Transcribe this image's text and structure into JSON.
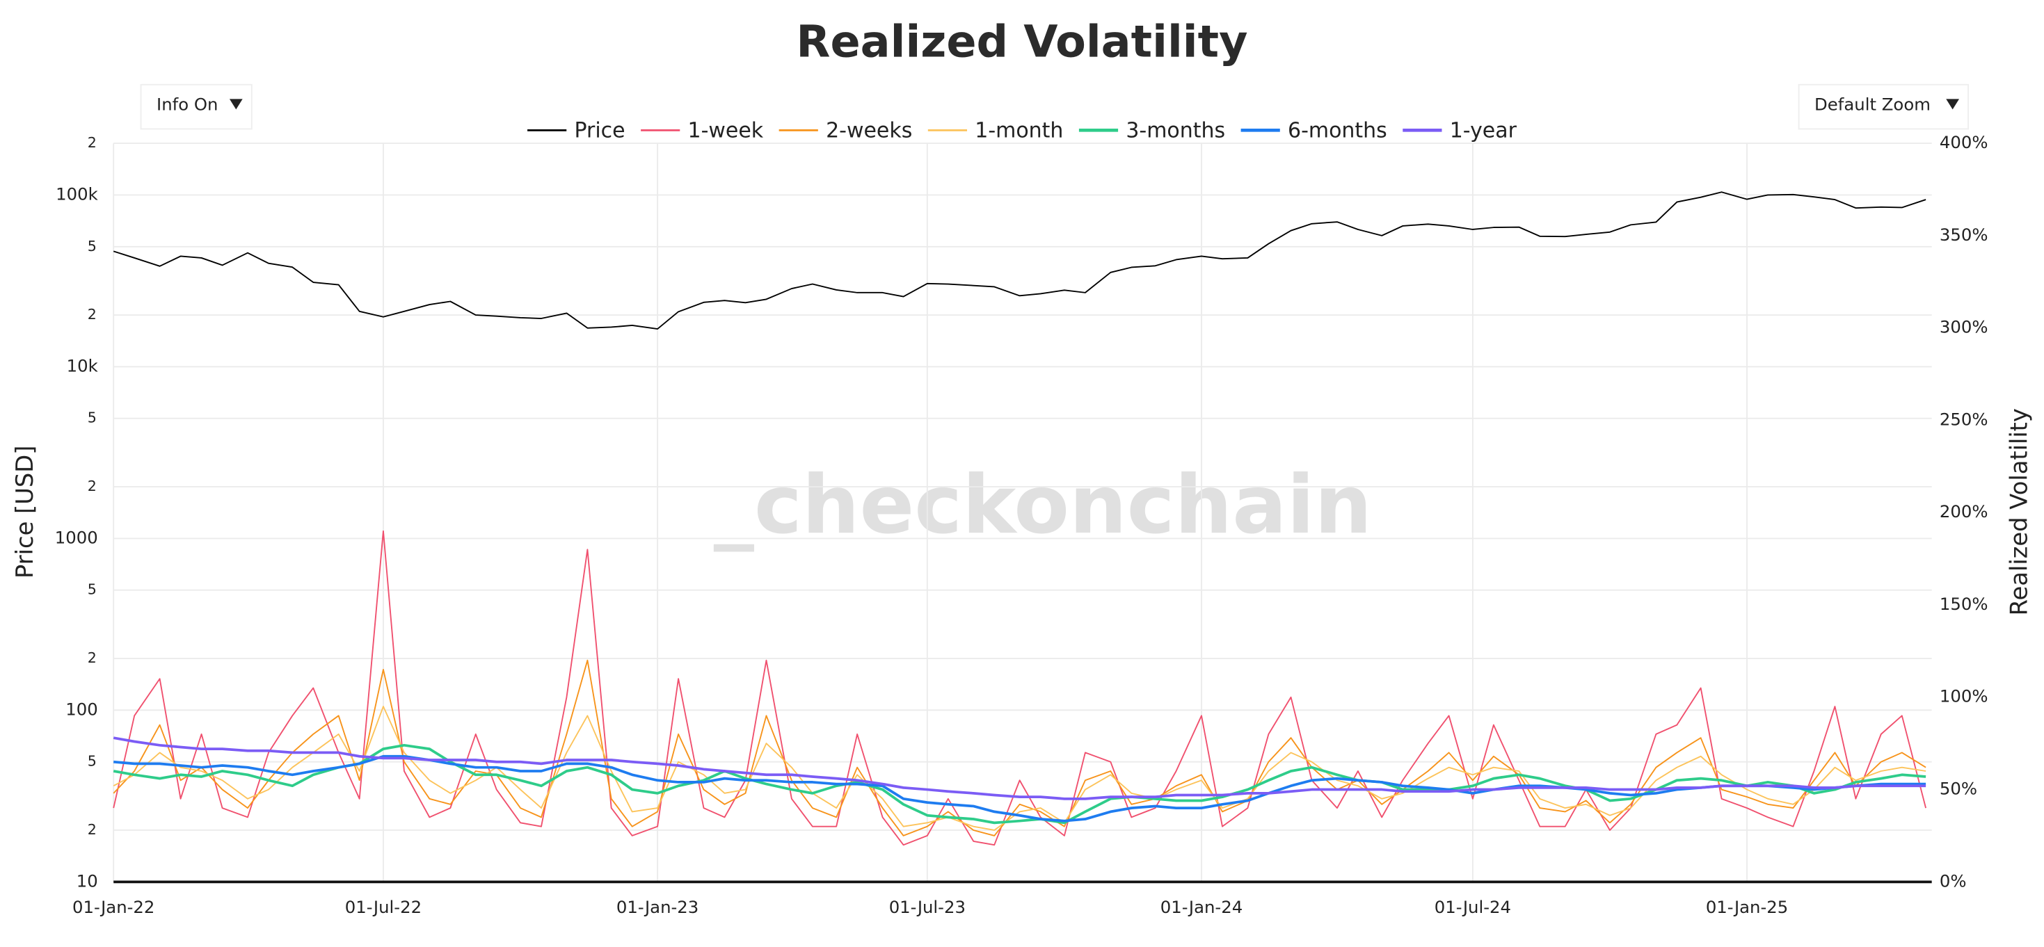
{
  "chart_data": {
    "type": "line",
    "title": "Realized Volatility",
    "ylabel": "Price [USD]",
    "y2label": "Realized Volatility",
    "watermark": "_checkonchain",
    "controls": {
      "info": "Info On",
      "zoom": "Default Zoom"
    },
    "log_y": true,
    "grid": true,
    "legend": "top",
    "xlim": [
      "2022-01-01",
      "2025-05-05"
    ],
    "xticks": [
      {
        "value": "2022-01-01",
        "label": "01-Jan-22"
      },
      {
        "value": "2022-07-01",
        "label": "01-Jul-22"
      },
      {
        "value": "2023-01-01",
        "label": "01-Jan-23"
      },
      {
        "value": "2023-07-01",
        "label": "01-Jul-23"
      },
      {
        "value": "2024-01-01",
        "label": "01-Jan-24"
      },
      {
        "value": "2024-07-01",
        "label": "01-Jul-24"
      },
      {
        "value": "2025-01-01",
        "label": "01-Jan-25"
      }
    ],
    "ylim": [
      10,
      200000
    ],
    "yticks": [
      10,
      {
        "value": 20,
        "label": "2"
      },
      {
        "value": 50,
        "label": "5"
      },
      100,
      {
        "value": 200,
        "label": "2"
      },
      {
        "value": 500,
        "label": "5"
      },
      1000,
      {
        "value": 2000,
        "label": "2"
      },
      {
        "value": 5000,
        "label": "5"
      },
      {
        "value": 10000,
        "label": "10k"
      },
      {
        "value": 20000,
        "label": "2"
      },
      {
        "value": 50000,
        "label": "5"
      },
      {
        "value": 100000,
        "label": "100k"
      },
      {
        "value": 200000,
        "label": "2"
      }
    ],
    "y2lim": [
      0,
      400
    ],
    "y2ticks": [
      {
        "value": 0,
        "label": "0%"
      },
      {
        "value": 50,
        "label": "50%"
      },
      {
        "value": 100,
        "label": "100%"
      },
      {
        "value": 150,
        "label": "150%"
      },
      {
        "value": 200,
        "label": "200%"
      },
      {
        "value": 250,
        "label": "250%"
      },
      {
        "value": 300,
        "label": "300%"
      },
      {
        "value": 350,
        "label": "350%"
      },
      {
        "value": 400,
        "label": "400%"
      }
    ],
    "x": [
      "2022-01-01",
      "2022-01-15",
      "2022-02-01",
      "2022-02-15",
      "2022-03-01",
      "2022-03-15",
      "2022-04-01",
      "2022-04-15",
      "2022-05-01",
      "2022-05-15",
      "2022-06-01",
      "2022-06-15",
      "2022-07-01",
      "2022-07-15",
      "2022-08-01",
      "2022-08-15",
      "2022-09-01",
      "2022-09-15",
      "2022-10-01",
      "2022-10-15",
      "2022-11-01",
      "2022-11-15",
      "2022-12-01",
      "2022-12-15",
      "2023-01-01",
      "2023-01-15",
      "2023-02-01",
      "2023-02-15",
      "2023-03-01",
      "2023-03-15",
      "2023-04-01",
      "2023-04-15",
      "2023-05-01",
      "2023-05-15",
      "2023-06-01",
      "2023-06-15",
      "2023-07-01",
      "2023-07-15",
      "2023-08-01",
      "2023-08-15",
      "2023-09-01",
      "2023-09-15",
      "2023-10-01",
      "2023-10-15",
      "2023-11-01",
      "2023-11-15",
      "2023-12-01",
      "2023-12-15",
      "2024-01-01",
      "2024-01-15",
      "2024-02-01",
      "2024-02-15",
      "2024-03-01",
      "2024-03-15",
      "2024-04-01",
      "2024-04-15",
      "2024-05-01",
      "2024-05-15",
      "2024-06-01",
      "2024-06-15",
      "2024-07-01",
      "2024-07-15",
      "2024-08-01",
      "2024-08-15",
      "2024-09-01",
      "2024-09-15",
      "2024-10-01",
      "2024-10-15",
      "2024-11-01",
      "2024-11-15",
      "2024-12-01",
      "2024-12-15",
      "2025-01-01",
      "2025-01-15",
      "2025-02-01",
      "2025-02-15",
      "2025-03-01",
      "2025-03-15",
      "2025-04-01",
      "2025-04-15",
      "2025-05-01"
    ],
    "series": [
      {
        "name": "Price",
        "color": "#000000",
        "width": 1,
        "axis": "y",
        "values": [
          47000,
          43000,
          38500,
          44000,
          43000,
          39000,
          46000,
          40000,
          38000,
          31000,
          30000,
          21000,
          19500,
          21000,
          23000,
          24000,
          20000,
          19700,
          19300,
          19100,
          20500,
          16800,
          17000,
          17400,
          16600,
          20900,
          23700,
          24300,
          23600,
          24700,
          28500,
          30300,
          28000,
          27000,
          27000,
          25600,
          30500,
          30300,
          29700,
          29200,
          25900,
          26600,
          27900,
          27000,
          35400,
          37900,
          38700,
          42000,
          44000,
          42500,
          43000,
          52000,
          62000,
          68000,
          69700,
          63000,
          58000,
          66000,
          67700,
          66000,
          63000,
          64700,
          65000,
          57500,
          57300,
          59000,
          60800,
          67000,
          69500,
          91000,
          97000,
          104000,
          94400,
          100000,
          100600,
          97500,
          94000,
          84000,
          85000,
          84500,
          94000
        ]
      },
      {
        "name": "1-week",
        "color": "#f0506e",
        "width": 1,
        "axis": "y2",
        "values": [
          40,
          90,
          110,
          45,
          80,
          40,
          35,
          70,
          90,
          105,
          70,
          45,
          190,
          60,
          35,
          40,
          80,
          50,
          32,
          30,
          100,
          180,
          40,
          25,
          30,
          110,
          40,
          35,
          55,
          120,
          45,
          30,
          30,
          80,
          35,
          20,
          25,
          45,
          22,
          20,
          55,
          35,
          25,
          70,
          65,
          35,
          40,
          60,
          90,
          30,
          40,
          80,
          100,
          55,
          40,
          60,
          35,
          55,
          75,
          90,
          45,
          85,
          55,
          30,
          30,
          50,
          28,
          40,
          80,
          85,
          105,
          45,
          40,
          35,
          30,
          60,
          95,
          45,
          80,
          90,
          40
        ]
      },
      {
        "name": "2-weeks",
        "color": "#f7931a",
        "width": 1,
        "axis": "y2",
        "values": [
          48,
          60,
          85,
          55,
          62,
          50,
          40,
          55,
          70,
          80,
          90,
          55,
          115,
          65,
          45,
          42,
          60,
          58,
          40,
          35,
          80,
          120,
          45,
          30,
          38,
          80,
          50,
          42,
          48,
          90,
          55,
          40,
          35,
          62,
          40,
          25,
          30,
          38,
          28,
          25,
          42,
          38,
          30,
          55,
          60,
          42,
          45,
          52,
          58,
          38,
          44,
          65,
          78,
          62,
          50,
          55,
          42,
          50,
          60,
          70,
          55,
          68,
          58,
          40,
          38,
          44,
          32,
          42,
          62,
          70,
          78,
          50,
          46,
          42,
          40,
          55,
          70,
          52,
          65,
          70,
          62
        ]
      },
      {
        "name": "1-month",
        "color": "#fcc35a",
        "width": 1,
        "axis": "y2",
        "values": [
          52,
          58,
          70,
          62,
          60,
          55,
          45,
          50,
          62,
          70,
          80,
          60,
          95,
          70,
          55,
          48,
          55,
          62,
          50,
          40,
          70,
          90,
          60,
          38,
          40,
          65,
          58,
          48,
          50,
          75,
          62,
          48,
          40,
          58,
          45,
          30,
          32,
          35,
          30,
          28,
          38,
          40,
          32,
          50,
          58,
          48,
          45,
          50,
          55,
          40,
          45,
          60,
          70,
          65,
          55,
          52,
          45,
          48,
          56,
          62,
          58,
          62,
          60,
          45,
          40,
          42,
          36,
          40,
          55,
          62,
          68,
          58,
          50,
          45,
          42,
          50,
          62,
          55,
          60,
          62,
          60
        ]
      },
      {
        "name": "3-months",
        "color": "#2ecc8a",
        "width": 2,
        "axis": "y2",
        "values": [
          60,
          58,
          56,
          58,
          57,
          60,
          58,
          55,
          52,
          58,
          62,
          64,
          72,
          74,
          72,
          65,
          58,
          58,
          55,
          52,
          60,
          62,
          58,
          50,
          48,
          52,
          55,
          60,
          56,
          53,
          50,
          48,
          52,
          54,
          50,
          42,
          36,
          35,
          34,
          32,
          33,
          34,
          32,
          38,
          45,
          46,
          45,
          44,
          44,
          46,
          50,
          55,
          60,
          62,
          58,
          55,
          54,
          50,
          50,
          50,
          52,
          56,
          58,
          56,
          52,
          50,
          44,
          45,
          50,
          55,
          56,
          55,
          52,
          54,
          52,
          48,
          50,
          54,
          56,
          58,
          57
        ]
      },
      {
        "name": "6-months",
        "color": "#1e7cf0",
        "width": 2,
        "axis": "y2",
        "values": [
          65,
          64,
          64,
          63,
          62,
          63,
          62,
          60,
          58,
          60,
          62,
          64,
          68,
          68,
          66,
          64,
          62,
          62,
          60,
          60,
          64,
          64,
          62,
          58,
          55,
          54,
          54,
          56,
          55,
          55,
          54,
          54,
          53,
          53,
          52,
          45,
          43,
          42,
          41,
          38,
          36,
          34,
          33,
          34,
          38,
          40,
          41,
          40,
          40,
          42,
          44,
          48,
          52,
          55,
          56,
          55,
          54,
          52,
          51,
          50,
          48,
          50,
          52,
          52,
          51,
          50,
          48,
          47,
          48,
          50,
          51,
          52,
          52,
          52,
          51,
          50,
          51,
          52,
          53,
          53,
          53
        ]
      },
      {
        "name": "1-year",
        "color": "#7b5cf5",
        "width": 2,
        "axis": "y2",
        "values": [
          78,
          76,
          74,
          73,
          72,
          72,
          71,
          71,
          70,
          70,
          70,
          68,
          67,
          67,
          66,
          66,
          66,
          65,
          65,
          64,
          66,
          66,
          66,
          65,
          64,
          63,
          61,
          60,
          59,
          58,
          58,
          57,
          56,
          55,
          53,
          51,
          50,
          49,
          48,
          47,
          46,
          46,
          45,
          45,
          46,
          46,
          46,
          47,
          47,
          47,
          48,
          48,
          49,
          50,
          50,
          50,
          50,
          49,
          49,
          49,
          50,
          50,
          51,
          51,
          51,
          51,
          50,
          50,
          50,
          51,
          51,
          52,
          52,
          52,
          52,
          51,
          51,
          52,
          52,
          52,
          52
        ]
      }
    ]
  }
}
